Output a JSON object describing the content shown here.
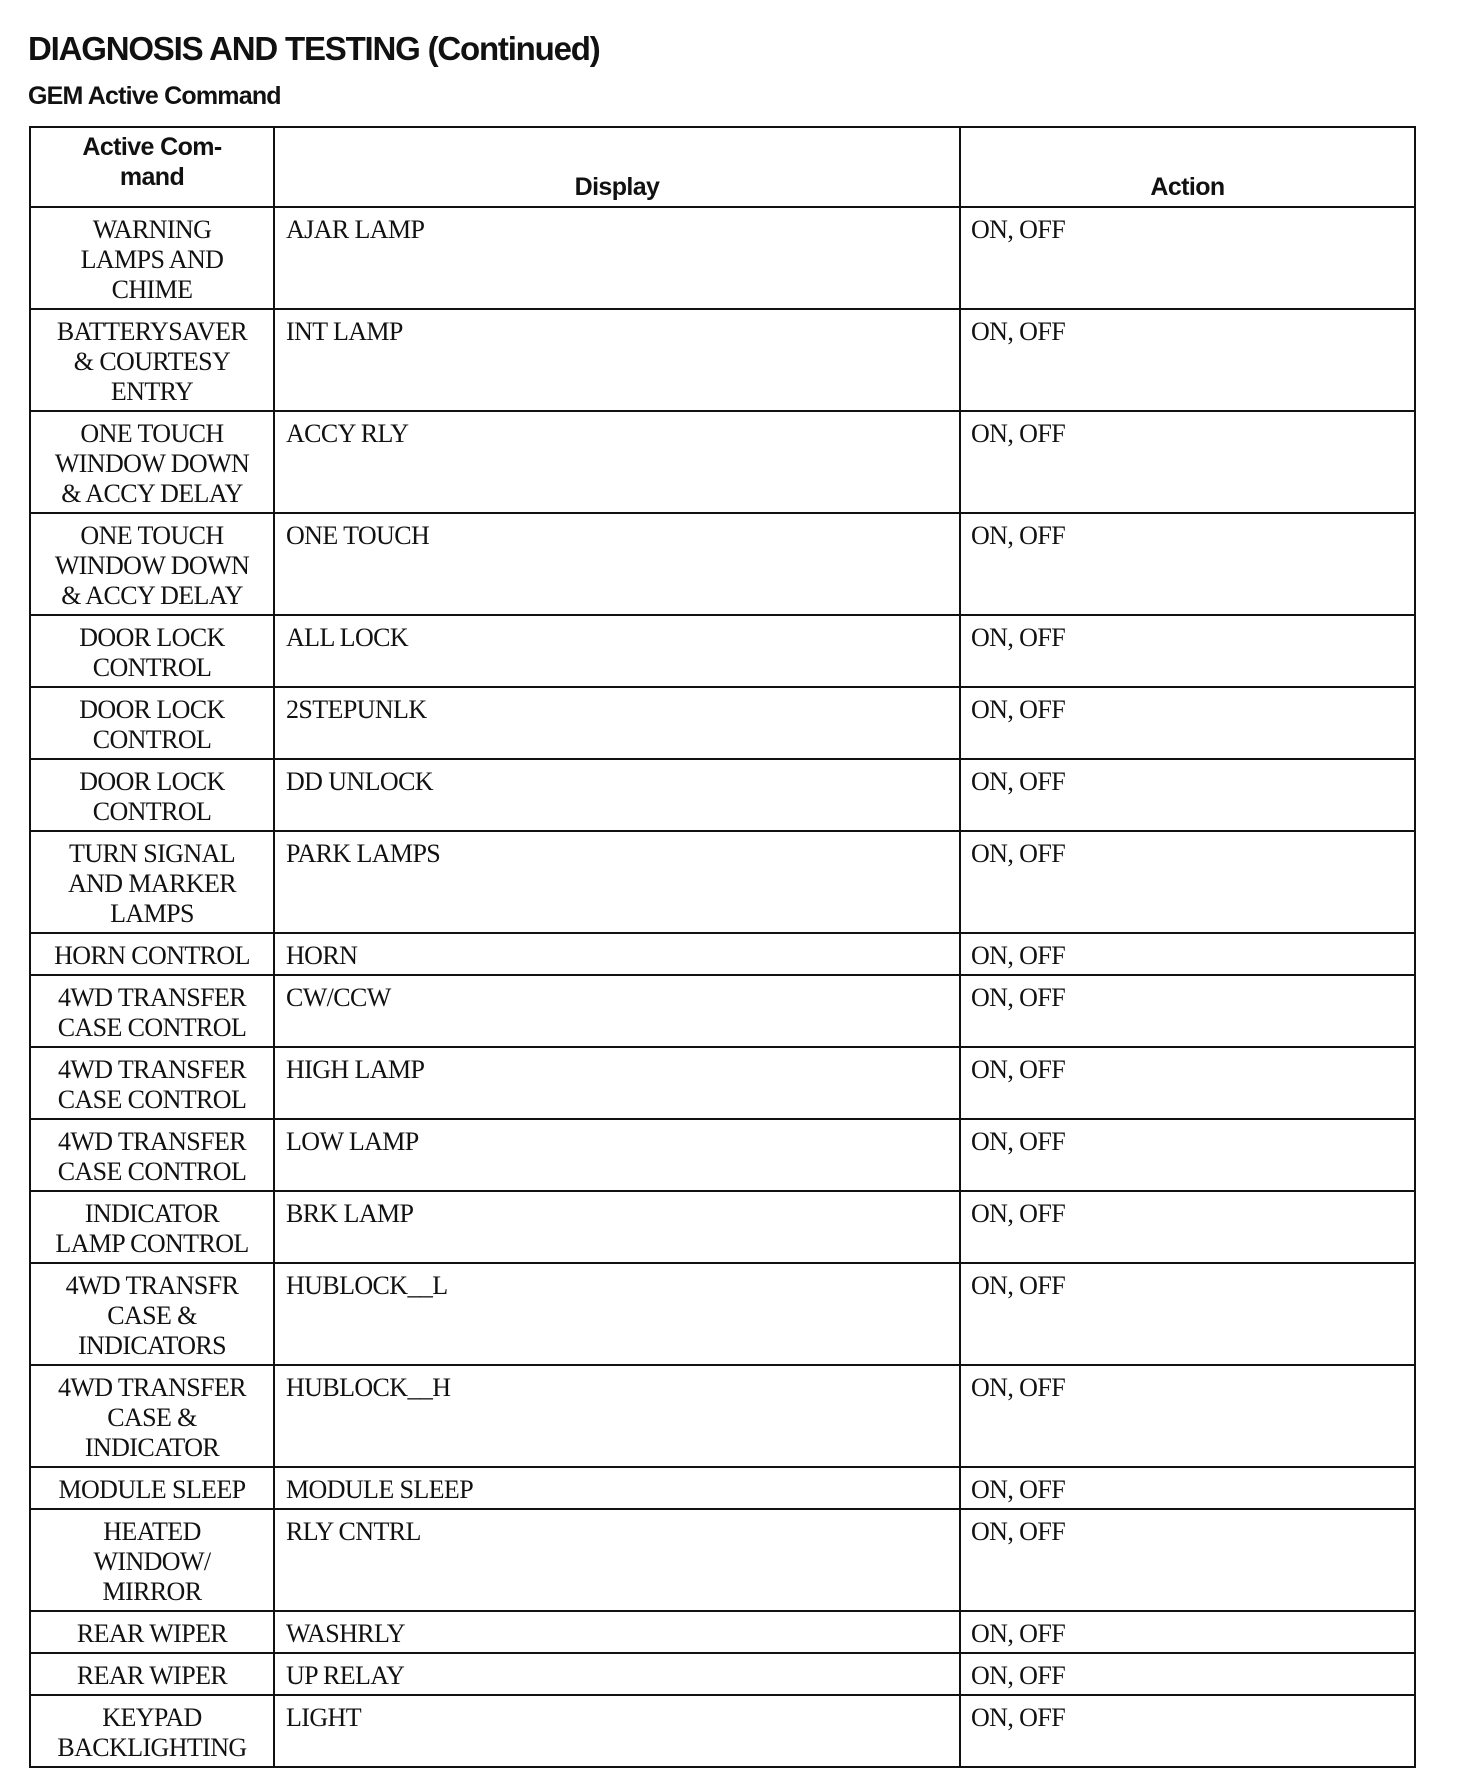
{
  "title": "DIAGNOSIS AND TESTING (Continued)",
  "subtitle": "GEM Active Command",
  "table": {
    "headers": [
      "Active Com-\nmand",
      "Display",
      "Action"
    ],
    "rows": [
      [
        "WARNING LAMPS AND CHIME",
        "AJAR LAMP",
        "ON, OFF"
      ],
      [
        "BATTERYSAVER & COURTESY ENTRY",
        "INT LAMP",
        "ON, OFF"
      ],
      [
        "ONE TOUCH WINDOW DOWN & ACCY DELAY",
        "ACCY RLY",
        "ON, OFF"
      ],
      [
        "ONE TOUCH WINDOW DOWN & ACCY DELAY",
        "ONE TOUCH",
        "ON, OFF"
      ],
      [
        "DOOR LOCK CONTROL",
        "ALL LOCK",
        "ON, OFF"
      ],
      [
        "DOOR LOCK CONTROL",
        "2STEPUNLK",
        "ON, OFF"
      ],
      [
        "DOOR LOCK CONTROL",
        "DD UNLOCK",
        "ON, OFF"
      ],
      [
        "TURN SIGNAL AND MARKER LAMPS",
        "PARK LAMPS",
        "ON, OFF"
      ],
      [
        "HORN CONTROL",
        "HORN",
        "ON, OFF"
      ],
      [
        "4WD TRANSFER CASE CONTROL",
        "CW/CCW",
        "ON, OFF"
      ],
      [
        "4WD TRANSFER CASE CONTROL",
        "HIGH LAMP",
        "ON, OFF"
      ],
      [
        "4WD TRANSFER CASE CONTROL",
        "LOW LAMP",
        "ON, OFF"
      ],
      [
        "INDICATOR LAMP CONTROL",
        "BRK LAMP",
        "ON, OFF"
      ],
      [
        "4WD TRANSFR CASE & INDICATORS",
        "HUBLOCK__L",
        "ON, OFF"
      ],
      [
        "4WD TRANSFER CASE & INDICATOR",
        "HUBLOCK__H",
        "ON, OFF"
      ],
      [
        "MODULE SLEEP",
        "MODULE SLEEP",
        "ON, OFF"
      ],
      [
        "HEATED WINDOW/ MIRROR",
        "RLY CNTRL",
        "ON, OFF"
      ],
      [
        "REAR WIPER",
        "WASHRLY",
        "ON, OFF"
      ],
      [
        "REAR WIPER",
        "UP RELAY",
        "ON, OFF"
      ],
      [
        "KEYPAD BACKLIGHTING",
        "LIGHT",
        "ON, OFF"
      ]
    ]
  }
}
